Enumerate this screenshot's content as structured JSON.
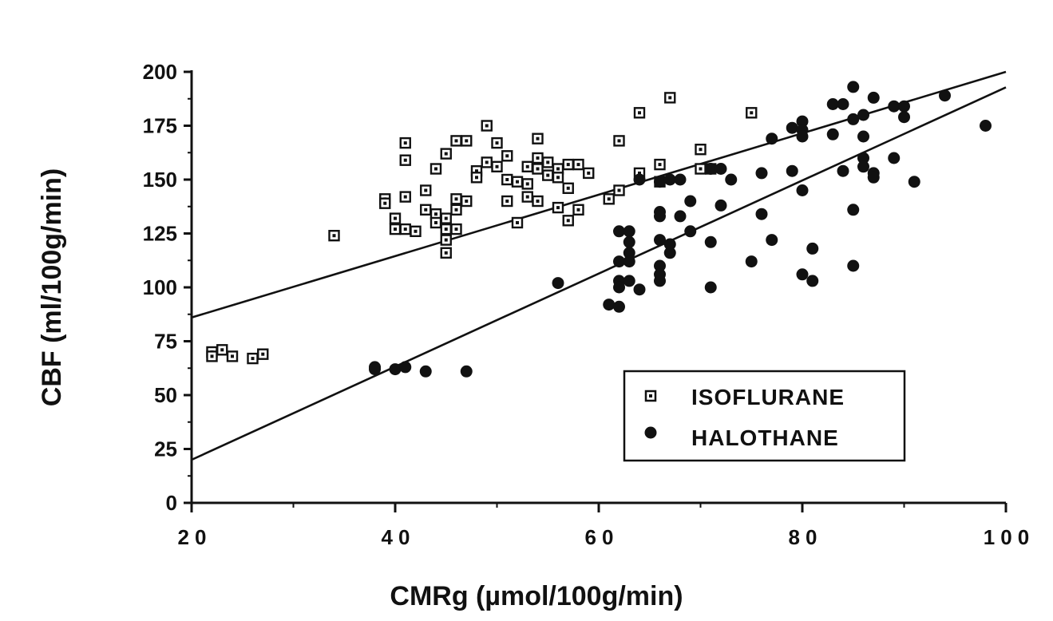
{
  "chart_data": {
    "type": "scatter",
    "xlabel": "CMRg (µmol/100g/min)",
    "ylabel": "CBF (ml/100g/min)",
    "xlim": [
      20,
      100
    ],
    "ylim": [
      0,
      200
    ],
    "x_ticks": [
      20,
      40,
      60,
      80,
      100
    ],
    "y_ticks": [
      0,
      25,
      50,
      75,
      100,
      125,
      150,
      175,
      200
    ],
    "x_tick_labels": [
      "20",
      "40",
      "60",
      "80",
      "100"
    ],
    "y_tick_labels": [
      "0",
      "25",
      "50",
      "75",
      "100",
      "125",
      "150",
      "175",
      "200"
    ],
    "grid": false,
    "legend_position": "lower-right",
    "series": [
      {
        "name": "ISOFLURANE",
        "marker": "open-square",
        "color": "#111111",
        "points": [
          [
            22,
            70
          ],
          [
            22,
            68
          ],
          [
            23,
            71
          ],
          [
            24,
            68
          ],
          [
            26,
            67
          ],
          [
            27,
            69
          ],
          [
            34,
            124
          ],
          [
            39,
            141
          ],
          [
            39,
            139
          ],
          [
            40,
            132
          ],
          [
            40,
            127
          ],
          [
            41,
            167
          ],
          [
            41,
            159
          ],
          [
            41,
            142
          ],
          [
            41,
            127
          ],
          [
            42,
            126
          ],
          [
            43,
            145
          ],
          [
            43,
            136
          ],
          [
            44,
            155
          ],
          [
            44,
            134
          ],
          [
            44,
            130
          ],
          [
            45,
            162
          ],
          [
            45,
            122
          ],
          [
            45,
            116
          ],
          [
            45,
            127
          ],
          [
            45,
            132
          ],
          [
            46,
            168
          ],
          [
            46,
            141
          ],
          [
            46,
            136
          ],
          [
            46,
            127
          ],
          [
            47,
            168
          ],
          [
            47,
            140
          ],
          [
            48,
            154
          ],
          [
            48,
            151
          ],
          [
            49,
            175
          ],
          [
            49,
            158
          ],
          [
            50,
            167
          ],
          [
            50,
            156
          ],
          [
            51,
            161
          ],
          [
            51,
            150
          ],
          [
            51,
            140
          ],
          [
            52,
            130
          ],
          [
            52,
            149
          ],
          [
            53,
            156
          ],
          [
            53,
            148
          ],
          [
            53,
            142
          ],
          [
            54,
            169
          ],
          [
            54,
            160
          ],
          [
            54,
            155
          ],
          [
            54,
            140
          ],
          [
            55,
            158
          ],
          [
            55,
            152
          ],
          [
            56,
            155
          ],
          [
            56,
            151
          ],
          [
            56,
            137
          ],
          [
            57,
            157
          ],
          [
            57,
            146
          ],
          [
            57,
            131
          ],
          [
            58,
            157
          ],
          [
            58,
            136
          ],
          [
            59,
            153
          ],
          [
            61,
            141
          ],
          [
            62,
            168
          ],
          [
            62,
            145
          ],
          [
            64,
            181
          ],
          [
            64,
            153
          ],
          [
            66,
            157
          ],
          [
            66,
            149
          ],
          [
            67,
            188
          ],
          [
            70,
            164
          ],
          [
            70,
            155
          ],
          [
            71,
            155
          ],
          [
            75,
            181
          ]
        ],
        "fit": {
          "slope": 1.425,
          "intercept": 57.5
        }
      },
      {
        "name": "HALOTHANE",
        "marker": "filled-circle",
        "color": "#111111",
        "points": [
          [
            38,
            63
          ],
          [
            38,
            62
          ],
          [
            40,
            62
          ],
          [
            41,
            63
          ],
          [
            43,
            61
          ],
          [
            47,
            61
          ],
          [
            56,
            102
          ],
          [
            61,
            92
          ],
          [
            62,
            126
          ],
          [
            62,
            112
          ],
          [
            62,
            103
          ],
          [
            62,
            100
          ],
          [
            62,
            91
          ],
          [
            63,
            126
          ],
          [
            63,
            121
          ],
          [
            63,
            116
          ],
          [
            63,
            112
          ],
          [
            63,
            103
          ],
          [
            64,
            150
          ],
          [
            64,
            99
          ],
          [
            66,
            149
          ],
          [
            66,
            135
          ],
          [
            66,
            133
          ],
          [
            66,
            122
          ],
          [
            66,
            110
          ],
          [
            66,
            106
          ],
          [
            66,
            103
          ],
          [
            67,
            150
          ],
          [
            67,
            120
          ],
          [
            67,
            116
          ],
          [
            68,
            150
          ],
          [
            68,
            133
          ],
          [
            69,
            140
          ],
          [
            69,
            126
          ],
          [
            71,
            155
          ],
          [
            71,
            121
          ],
          [
            71,
            100
          ],
          [
            72,
            155
          ],
          [
            72,
            138
          ],
          [
            73,
            150
          ],
          [
            75,
            112
          ],
          [
            76,
            153
          ],
          [
            76,
            134
          ],
          [
            77,
            169
          ],
          [
            77,
            122
          ],
          [
            79,
            174
          ],
          [
            79,
            154
          ],
          [
            80,
            177
          ],
          [
            80,
            173
          ],
          [
            80,
            170
          ],
          [
            80,
            145
          ],
          [
            80,
            106
          ],
          [
            81,
            118
          ],
          [
            81,
            103
          ],
          [
            83,
            185
          ],
          [
            83,
            171
          ],
          [
            84,
            185
          ],
          [
            84,
            154
          ],
          [
            85,
            193
          ],
          [
            85,
            178
          ],
          [
            85,
            136
          ],
          [
            85,
            110
          ],
          [
            86,
            180
          ],
          [
            86,
            170
          ],
          [
            86,
            160
          ],
          [
            86,
            156
          ],
          [
            87,
            188
          ],
          [
            87,
            153
          ],
          [
            87,
            151
          ],
          [
            89,
            184
          ],
          [
            89,
            160
          ],
          [
            90,
            184
          ],
          [
            90,
            179
          ],
          [
            91,
            149
          ],
          [
            94,
            189
          ],
          [
            98,
            175
          ]
        ],
        "fit": {
          "slope": 2.16,
          "intercept": -23.2
        }
      }
    ]
  }
}
